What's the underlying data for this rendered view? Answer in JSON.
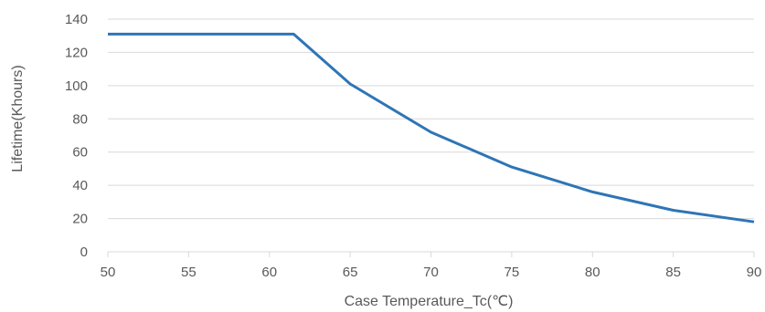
{
  "chart_data": {
    "type": "line",
    "title": "",
    "xlabel": "Case Temperature_Tc(℃)",
    "ylabel": "Lifetime(Khours)",
    "xlim": [
      50,
      90
    ],
    "ylim": [
      0,
      140
    ],
    "x_ticks": [
      50,
      55,
      60,
      65,
      70,
      75,
      80,
      85,
      90
    ],
    "y_ticks": [
      0,
      20,
      40,
      60,
      80,
      100,
      120,
      140
    ],
    "grid": true,
    "legend": "none",
    "series": [
      {
        "color": "#2e75b6",
        "x": [
          50,
          61.5,
          65,
          70,
          75,
          80,
          85,
          90
        ],
        "y": [
          131,
          131,
          101,
          72,
          51,
          36,
          25,
          18
        ]
      }
    ]
  }
}
